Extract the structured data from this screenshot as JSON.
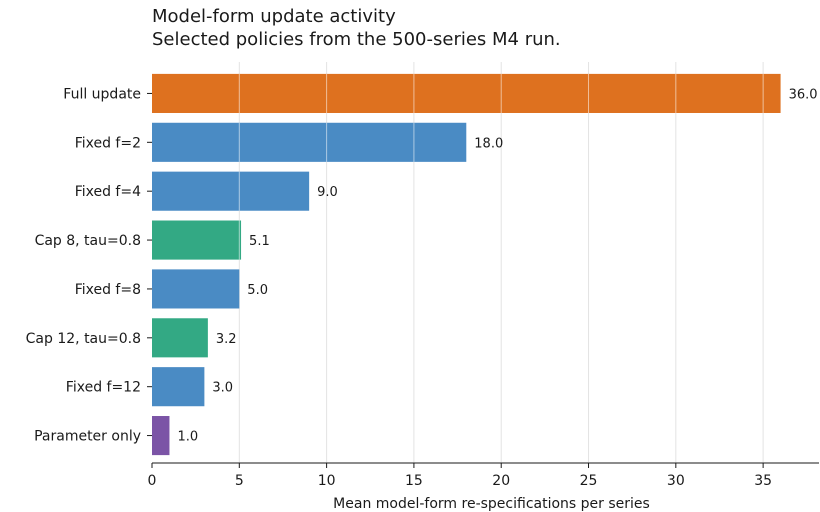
{
  "chart_data": {
    "type": "bar",
    "orientation": "horizontal",
    "title": "Model-form update activity",
    "subtitle": "Selected policies from the 500-series M4 run.",
    "xlabel": "Mean model-form re-specifications per series",
    "ylabel": "",
    "xlim": [
      0,
      38.2
    ],
    "xticks": [
      0,
      5,
      10,
      15,
      20,
      25,
      30,
      35
    ],
    "grid": "vertical",
    "categories": [
      "Full update",
      "Fixed f=2",
      "Fixed f=4",
      "Cap 8, tau=0.8",
      "Fixed f=8",
      "Cap 12, tau=0.8",
      "Fixed f=12",
      "Parameter only"
    ],
    "values": [
      36.0,
      18.0,
      9.0,
      5.1,
      5.0,
      3.2,
      3.0,
      1.0
    ],
    "data_labels": [
      "36.0",
      "18.0",
      "9.0",
      "5.1",
      "5.0",
      "3.2",
      "3.0",
      "1.0"
    ],
    "colors": [
      "#de711f",
      "#4a8bc4",
      "#4a8bc4",
      "#33a984",
      "#4a8bc4",
      "#33a984",
      "#4a8bc4",
      "#7b54a6"
    ]
  }
}
